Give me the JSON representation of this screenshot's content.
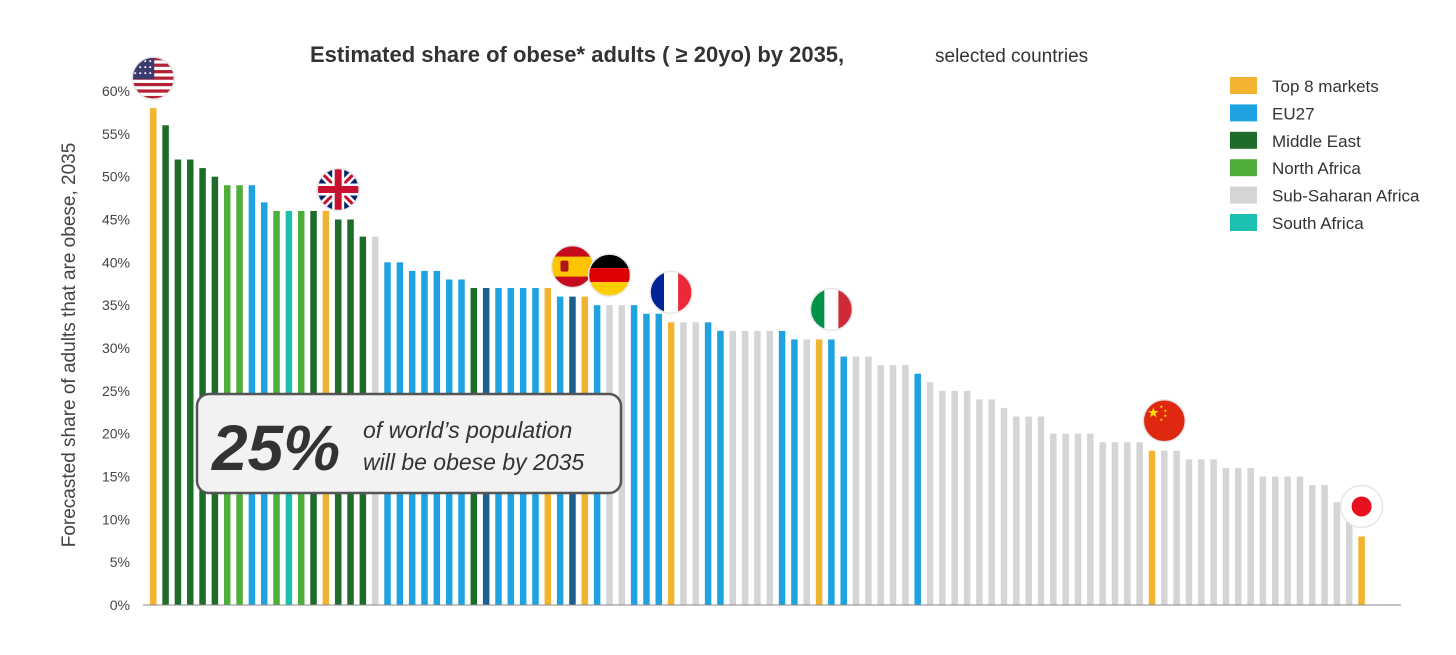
{
  "chart_data": {
    "type": "bar",
    "title": "Estimated share of obese* adults ( ≥ 20yo) by 2035,",
    "subtitle": "selected countries",
    "ylabel": "Forecasted share of adults that are obese, 2035",
    "xlabel": "",
    "ylim": [
      0,
      60
    ],
    "yticks": [
      "0%",
      "5%",
      "10%",
      "15%",
      "20%",
      "25%",
      "30%",
      "35%",
      "40%",
      "45%",
      "50%",
      "55%",
      "60%"
    ],
    "legend": [
      {
        "key": "top8",
        "label": "Top 8 markets",
        "color": "#F2B330"
      },
      {
        "key": "eu27",
        "label": "EU27",
        "color": "#1FA2E0"
      },
      {
        "key": "me",
        "label": "Middle East",
        "color": "#1E6B2A"
      },
      {
        "key": "na",
        "label": "North Africa",
        "color": "#4DAF3A"
      },
      {
        "key": "ssa",
        "label": "Sub-Saharan Africa",
        "color": "#D4D5D7"
      },
      {
        "key": "sa",
        "label": "South Africa",
        "color": "#1DBFB0"
      }
    ],
    "extra_colors": {
      "dark_blue": "#1D5E8F"
    },
    "values": [
      58,
      56,
      52,
      52,
      51,
      50,
      49,
      49,
      49,
      47,
      46,
      46,
      46,
      46,
      46,
      45,
      45,
      43,
      43,
      40,
      40,
      39,
      39,
      39,
      38,
      38,
      37,
      37,
      37,
      37,
      37,
      37,
      37,
      36,
      36,
      36,
      35,
      35,
      35,
      35,
      34,
      34,
      33,
      33,
      33,
      33,
      32,
      32,
      32,
      32,
      32,
      32,
      31,
      31,
      31,
      31,
      29,
      29,
      29,
      28,
      28,
      28,
      27,
      26,
      25,
      25,
      25,
      24,
      24,
      23,
      22,
      22,
      22,
      20,
      20,
      20,
      20,
      19,
      19,
      19,
      19,
      18,
      18,
      18,
      17,
      17,
      17,
      16,
      16,
      16,
      15,
      15,
      15,
      15,
      14,
      14,
      12,
      12,
      8
    ],
    "groups": [
      "top8",
      "me",
      "me",
      "me",
      "me",
      "me",
      "na",
      "na",
      "eu27",
      "eu27",
      "na",
      "sa",
      "na",
      "me",
      "top8",
      "me",
      "me",
      "me",
      "ssa",
      "eu27",
      "eu27",
      "eu27",
      "eu27",
      "eu27",
      "eu27",
      "eu27",
      "me",
      "dark_blue",
      "eu27",
      "eu27",
      "eu27",
      "eu27",
      "top8",
      "eu27",
      "dark_blue",
      "top8",
      "eu27",
      "ssa",
      "ssa",
      "eu27",
      "eu27",
      "eu27",
      "top8",
      "ssa",
      "ssa",
      "eu27",
      "eu27",
      "ssa",
      "ssa",
      "ssa",
      "ssa",
      "eu27",
      "eu27",
      "ssa",
      "top8",
      "eu27",
      "eu27",
      "ssa",
      "ssa",
      "ssa",
      "ssa",
      "ssa",
      "eu27",
      "ssa",
      "ssa",
      "ssa",
      "ssa",
      "ssa",
      "ssa",
      "ssa",
      "ssa",
      "ssa",
      "ssa",
      "ssa",
      "ssa",
      "ssa",
      "ssa",
      "ssa",
      "ssa",
      "ssa",
      "ssa",
      "top8",
      "ssa",
      "ssa",
      "ssa",
      "ssa",
      "ssa",
      "ssa",
      "ssa",
      "ssa",
      "ssa",
      "ssa",
      "ssa",
      "ssa",
      "ssa",
      "ssa",
      "ssa",
      "ssa",
      "top8"
    ],
    "flags": [
      {
        "country": "United States",
        "flag": "us-flag-icon",
        "bar_index": 0
      },
      {
        "country": "United Kingdom",
        "flag": "uk-flag-icon",
        "bar_index": 15
      },
      {
        "country": "Spain",
        "flag": "spain-flag-icon",
        "bar_index": 34
      },
      {
        "country": "Germany",
        "flag": "germany-flag-icon",
        "bar_index": 37
      },
      {
        "country": "France",
        "flag": "france-flag-icon",
        "bar_index": 42
      },
      {
        "country": "Italy",
        "flag": "italy-flag-icon",
        "bar_index": 55
      },
      {
        "country": "China",
        "flag": "china-flag-icon",
        "bar_index": 82
      },
      {
        "country": "Japan",
        "flag": "japan-flag-icon",
        "bar_index": 98
      }
    ]
  },
  "callout": {
    "big": "25%",
    "line1": "of world’s population",
    "line2": "will be obese by 2035"
  }
}
